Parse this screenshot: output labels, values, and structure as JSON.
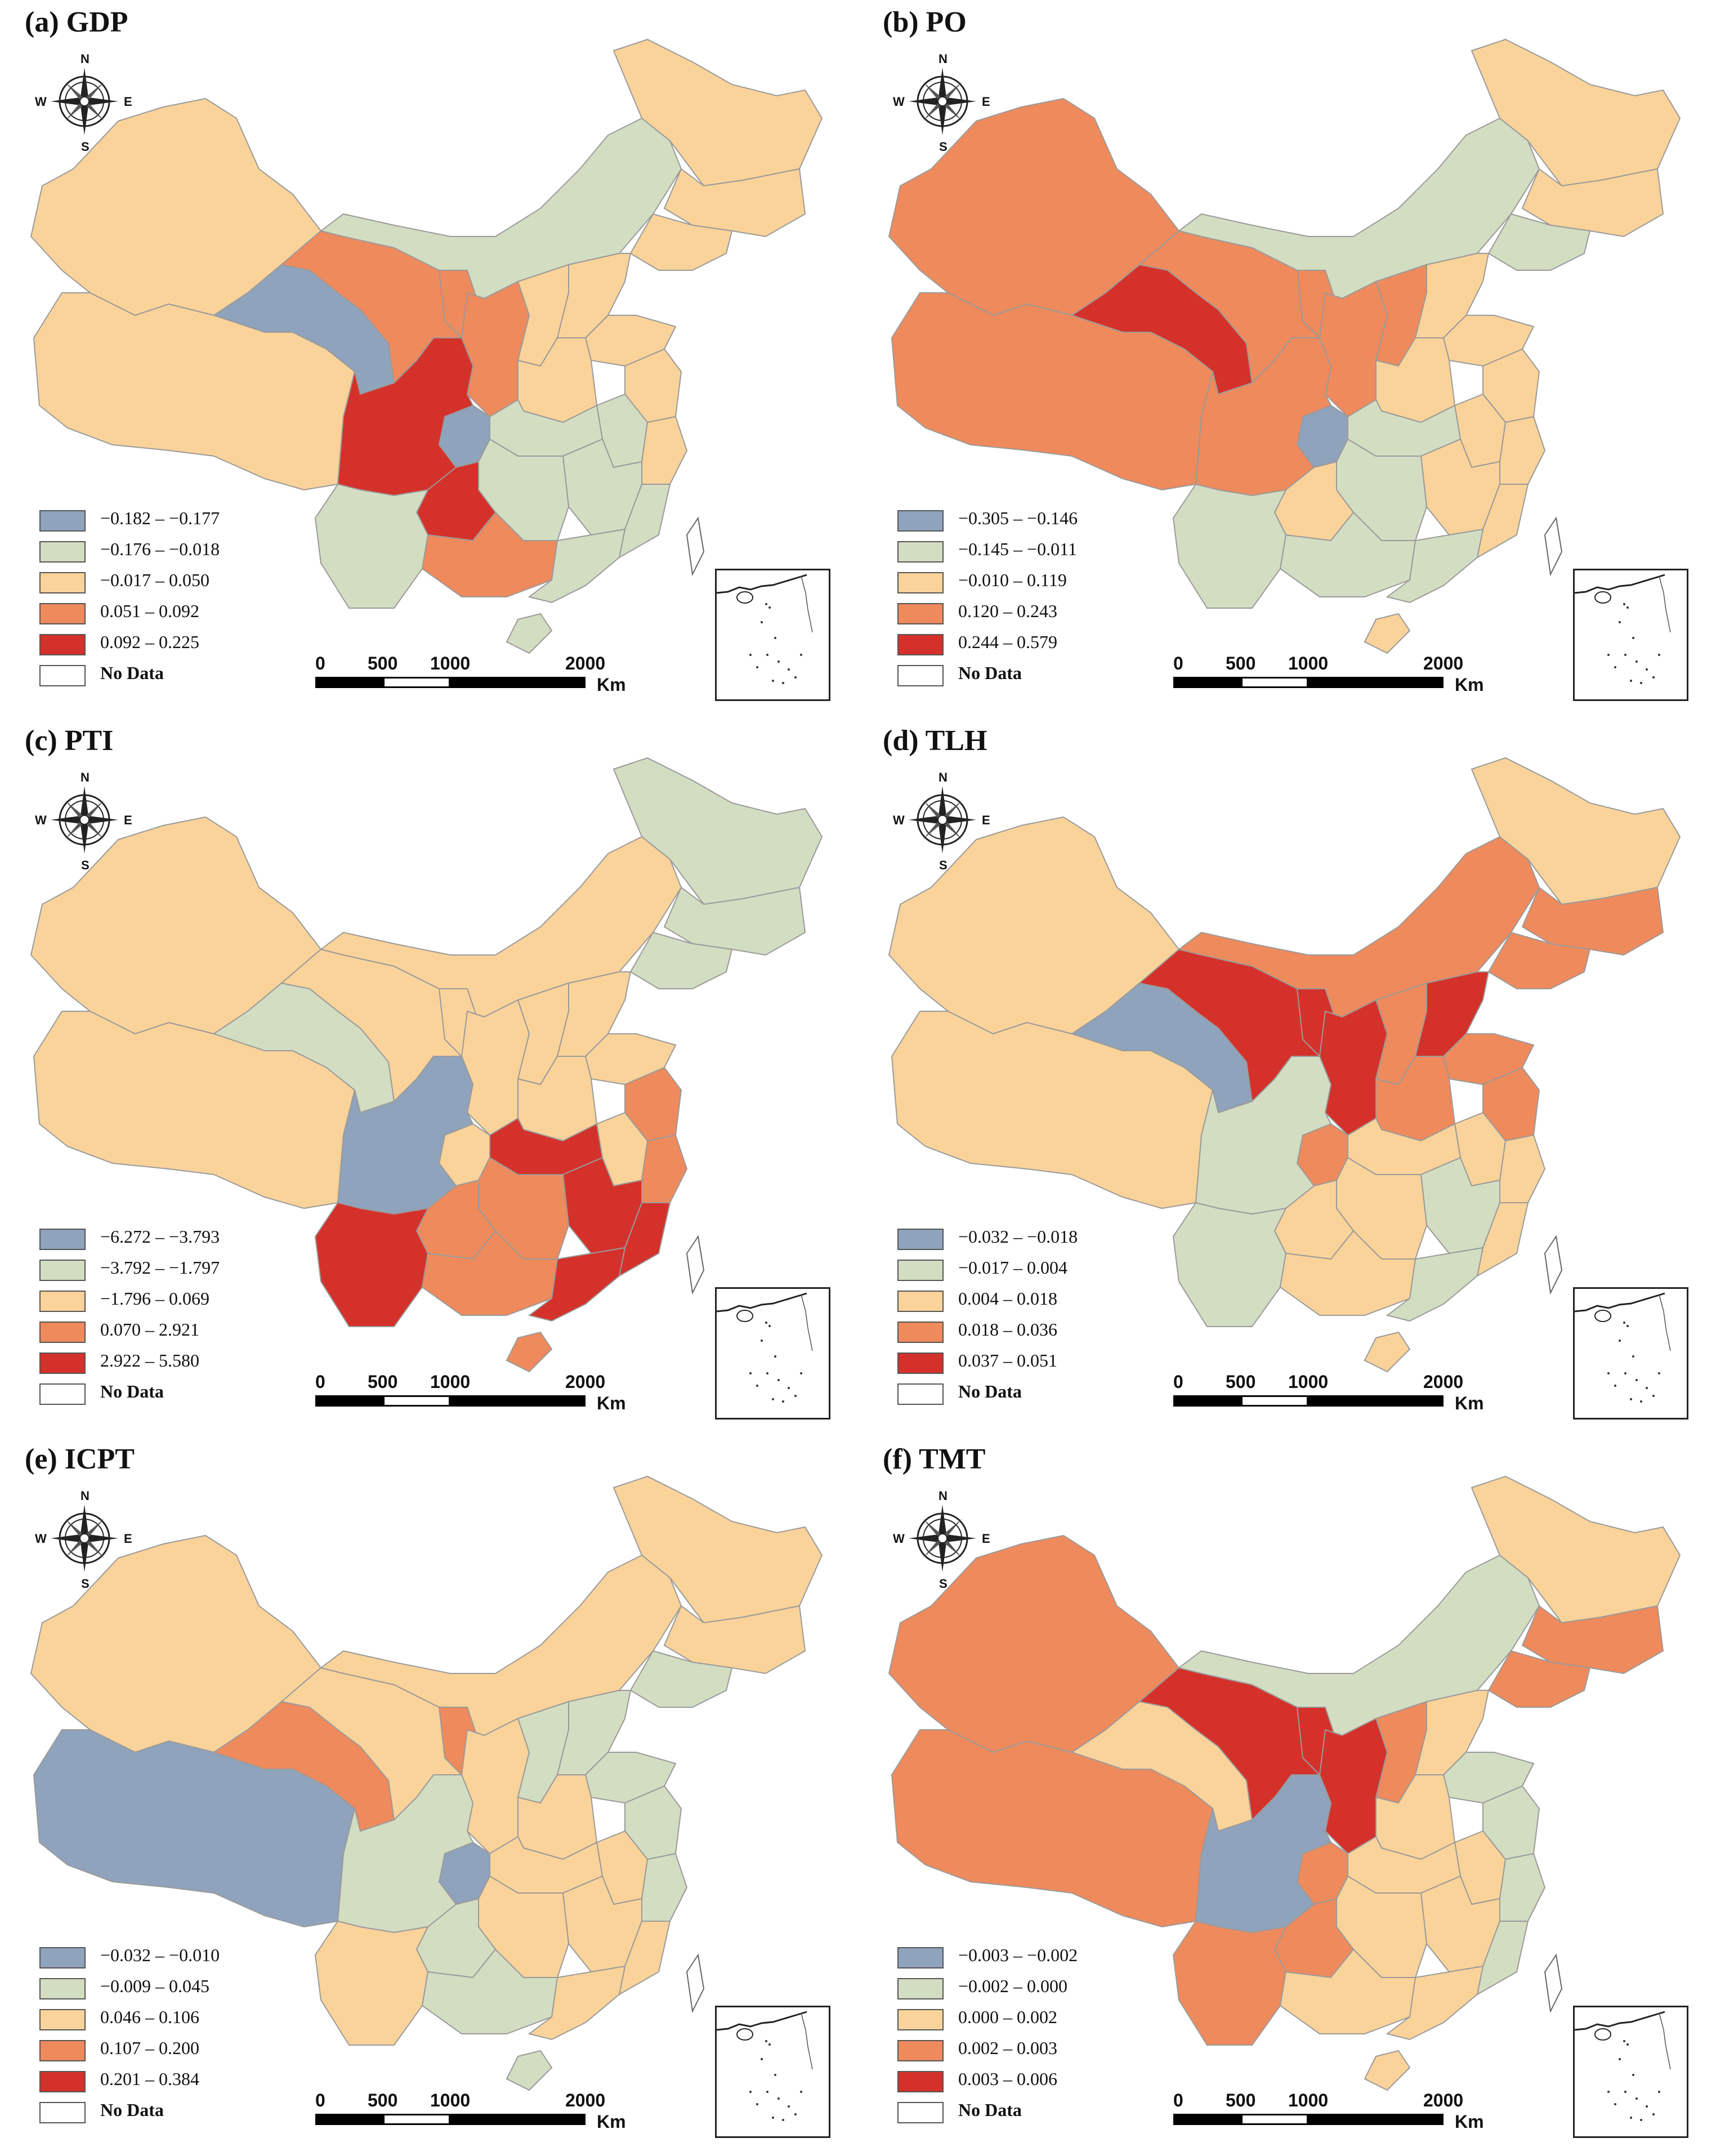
{
  "palette": {
    "class1": "#8fa3bc",
    "class2": "#d3ddc2",
    "class3": "#fad39a",
    "class4": "#ef8a5c",
    "class5": "#d5312b",
    "nodata": "#ffffff",
    "border": "#9a9a9a"
  },
  "common": {
    "compass": {
      "n": "N",
      "s": "S",
      "e": "E",
      "w": "W"
    },
    "no_data": "No Data",
    "scale_ticks": [
      "0",
      "500",
      "1000",
      "2000"
    ],
    "scale_unit": "Km"
  },
  "panels": [
    {
      "title": "(a) GDP",
      "legend": [
        "−0.182  –  −0.177",
        "−0.176  –  −0.018",
        "−0.017  –  0.050",
        "0.051  –  0.092",
        "0.092  –  0.225"
      ],
      "regions": {
        "xinjiang": 3,
        "tibet": 3,
        "qinghai": 1,
        "gansu": 4,
        "neimenggu": 2,
        "heilongjiang": 3,
        "jilin": 3,
        "liaoning": 3,
        "sichuan": 5,
        "yunnan": 2,
        "chongqing": 1,
        "guizhou": 5,
        "guangxi": 4,
        "shaanxi": 4,
        "ningxia": 4,
        "shanxi": 3,
        "hebei": 3,
        "shandong": 3,
        "henan": 3,
        "hubei": 2,
        "hunan": 2,
        "jiangxi": 2,
        "fujian": 2,
        "zhejiang": 3,
        "jiangsu": 3,
        "anhui": 2,
        "guangdong": 2,
        "hainan": 2,
        "taiwan": 0
      }
    },
    {
      "title": "(b) PO",
      "legend": [
        "−0.305  –  −0.146",
        "−0.145  –  −0.011",
        "−0.010  –  0.119",
        "0.120  –  0.243",
        "0.244  –  0.579"
      ],
      "regions": {
        "xinjiang": 4,
        "tibet": 4,
        "qinghai": 5,
        "gansu": 4,
        "neimenggu": 2,
        "heilongjiang": 3,
        "jilin": 3,
        "liaoning": 2,
        "sichuan": 4,
        "yunnan": 2,
        "chongqing": 1,
        "guizhou": 3,
        "guangxi": 2,
        "shaanxi": 4,
        "ningxia": 4,
        "shanxi": 4,
        "hebei": 3,
        "shandong": 3,
        "henan": 3,
        "hubei": 2,
        "hunan": 2,
        "jiangxi": 3,
        "fujian": 3,
        "zhejiang": 3,
        "jiangsu": 3,
        "anhui": 3,
        "guangdong": 2,
        "hainan": 3,
        "taiwan": 0
      }
    },
    {
      "title": "(c) PTI",
      "legend": [
        "−6.272  –  −3.793",
        "−3.792  –  −1.797",
        "−1.796  –  0.069",
        "0.070  –  2.921",
        "2.922  –  5.580"
      ],
      "regions": {
        "xinjiang": 3,
        "tibet": 3,
        "qinghai": 2,
        "gansu": 3,
        "neimenggu": 3,
        "heilongjiang": 2,
        "jilin": 2,
        "liaoning": 2,
        "sichuan": 1,
        "yunnan": 5,
        "chongqing": 3,
        "guizhou": 4,
        "guangxi": 4,
        "shaanxi": 3,
        "ningxia": 3,
        "shanxi": 3,
        "hebei": 3,
        "shandong": 3,
        "henan": 3,
        "hubei": 5,
        "hunan": 4,
        "jiangxi": 5,
        "fujian": 5,
        "zhejiang": 4,
        "jiangsu": 4,
        "anhui": 3,
        "guangdong": 5,
        "hainan": 4,
        "taiwan": 0
      }
    },
    {
      "title": "(d) TLH",
      "legend": [
        "−0.032  –  −0.018",
        "−0.017  –  0.004",
        "0.004  –  0.018",
        "0.018  –  0.036",
        "0.037  –  0.051"
      ],
      "regions": {
        "xinjiang": 3,
        "tibet": 3,
        "qinghai": 1,
        "gansu": 5,
        "neimenggu": 4,
        "heilongjiang": 3,
        "jilin": 4,
        "liaoning": 4,
        "sichuan": 2,
        "yunnan": 2,
        "chongqing": 4,
        "guizhou": 3,
        "guangxi": 3,
        "shaanxi": 5,
        "ningxia": 5,
        "shanxi": 4,
        "hebei": 5,
        "shandong": 4,
        "henan": 4,
        "hubei": 3,
        "hunan": 3,
        "jiangxi": 2,
        "fujian": 3,
        "zhejiang": 3,
        "jiangsu": 4,
        "anhui": 3,
        "guangdong": 2,
        "hainan": 3,
        "taiwan": 0
      }
    },
    {
      "title": "(e) ICPT",
      "legend": [
        "−0.032  –  −0.010",
        "−0.009  –  0.045",
        "0.046  –  0.106",
        "0.107  –  0.200",
        "0.201  –  0.384"
      ],
      "regions": {
        "xinjiang": 3,
        "tibet": 1,
        "qinghai": 4,
        "gansu": 3,
        "neimenggu": 3,
        "heilongjiang": 3,
        "jilin": 3,
        "liaoning": 2,
        "sichuan": 2,
        "yunnan": 3,
        "chongqing": 1,
        "guizhou": 2,
        "guangxi": 2,
        "shaanxi": 3,
        "ningxia": 4,
        "shanxi": 2,
        "hebei": 2,
        "shandong": 2,
        "henan": 3,
        "hubei": 3,
        "hunan": 3,
        "jiangxi": 3,
        "fujian": 3,
        "zhejiang": 2,
        "jiangsu": 2,
        "anhui": 3,
        "guangdong": 3,
        "hainan": 2,
        "taiwan": 0
      }
    },
    {
      "title": "(f) TMT",
      "legend": [
        "−0.003  –  −0.002",
        "−0.002  –  0.000",
        "0.000  –  0.002",
        "0.002  –  0.003",
        "0.003  –  0.006"
      ],
      "regions": {
        "xinjiang": 4,
        "tibet": 4,
        "qinghai": 3,
        "gansu": 5,
        "neimenggu": 2,
        "heilongjiang": 3,
        "jilin": 4,
        "liaoning": 4,
        "sichuan": 1,
        "yunnan": 4,
        "chongqing": 4,
        "guizhou": 4,
        "guangxi": 3,
        "shaanxi": 5,
        "ningxia": 5,
        "shanxi": 4,
        "hebei": 3,
        "shandong": 2,
        "henan": 3,
        "hubei": 3,
        "hunan": 3,
        "jiangxi": 3,
        "fujian": 2,
        "zhejiang": 2,
        "jiangsu": 2,
        "anhui": 3,
        "guangdong": 3,
        "hainan": 3,
        "taiwan": 0
      }
    }
  ]
}
